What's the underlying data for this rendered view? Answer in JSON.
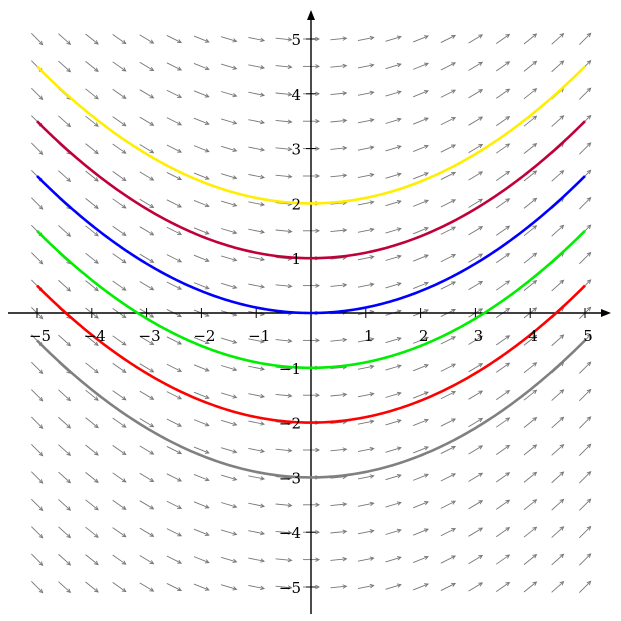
{
  "chart_data": {
    "type": "line",
    "title": "",
    "xlabel": "",
    "ylabel": "",
    "xlim": [
      -5,
      5
    ],
    "ylim": [
      -5,
      5
    ],
    "x_ticks": [
      -5,
      -4,
      -3,
      -2,
      -1,
      1,
      2,
      3,
      4,
      5
    ],
    "y_ticks": [
      -5,
      -4,
      -3,
      -2,
      -1,
      1,
      2,
      3,
      4,
      5
    ],
    "x_tick_labels": [
      "−5",
      "−4",
      "−3",
      "−2",
      "−1",
      "1",
      "2",
      "3",
      "4",
      "5"
    ],
    "y_tick_labels": [
      "−5",
      "−4",
      "−3",
      "−2",
      "−1",
      "1",
      "2",
      "3",
      "4",
      "5"
    ],
    "grid": false,
    "slope_field": {
      "description_visible": "direction field with slope proportional to x",
      "x_range": [
        -5,
        5
      ],
      "y_range": [
        -5,
        5
      ],
      "color": "#777777"
    },
    "series": [
      {
        "curve": "y = x^2/10 + 2",
        "color": "#ffee00",
        "x": [
          -5,
          -4,
          -3,
          -2,
          -1,
          0,
          1,
          2,
          3,
          4,
          5
        ],
        "values": [
          4.5,
          3.6,
          2.9,
          2.4,
          2.1,
          2.0,
          2.1,
          2.4,
          2.9,
          3.6,
          4.5
        ]
      },
      {
        "curve": "y = x^2/10 + 1",
        "color": "#c0003a",
        "x": [
          -5,
          -4,
          -3,
          -2,
          -1,
          0,
          1,
          2,
          3,
          4,
          5
        ],
        "values": [
          3.5,
          2.6,
          1.9,
          1.4,
          1.1,
          1.0,
          1.1,
          1.4,
          1.9,
          2.6,
          3.5
        ]
      },
      {
        "curve": "y = x^2/10",
        "color": "#0000ff",
        "x": [
          -5,
          -4,
          -3,
          -2,
          -1,
          0,
          1,
          2,
          3,
          4,
          5
        ],
        "values": [
          2.5,
          1.6,
          0.9,
          0.4,
          0.1,
          0.0,
          0.1,
          0.4,
          0.9,
          1.6,
          2.5
        ]
      },
      {
        "curve": "y = x^2/10 - 1",
        "color": "#00ee00",
        "x": [
          -5,
          -4,
          -3,
          -2,
          -1,
          0,
          1,
          2,
          3,
          4,
          5
        ],
        "values": [
          1.5,
          0.6,
          -0.1,
          -0.6,
          -0.9,
          -1.0,
          -0.9,
          -0.6,
          -0.1,
          0.6,
          1.5
        ]
      },
      {
        "curve": "y = x^2/10 - 2",
        "color": "#ff0000",
        "x": [
          -5,
          -4,
          -3,
          -2,
          -1,
          0,
          1,
          2,
          3,
          4,
          5
        ],
        "values": [
          0.5,
          -0.4,
          -1.1,
          -1.6,
          -1.9,
          -2.0,
          -1.9,
          -1.6,
          -1.1,
          -0.4,
          0.5
        ]
      },
      {
        "curve": "y = x^2/10 - 3",
        "color": "#808080",
        "x": [
          -5,
          -4,
          -3,
          -2,
          -1,
          0,
          1,
          2,
          3,
          4,
          5
        ],
        "values": [
          -0.5,
          -1.4,
          -2.1,
          -2.6,
          -2.9,
          -3.0,
          -2.9,
          -2.6,
          -2.1,
          -1.4,
          -0.5
        ]
      }
    ]
  }
}
